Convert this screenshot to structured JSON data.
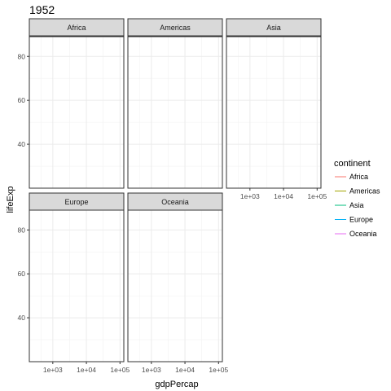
{
  "chart_data": {
    "type": "line",
    "title": "1952",
    "xlabel": "gdpPercap",
    "ylabel": "lifeExp",
    "x_scale": "log10",
    "x_ticks": [
      "1e+03",
      "1e+04",
      "1e+05"
    ],
    "x_tick_values": [
      1000,
      10000,
      100000
    ],
    "xlim": [
      200,
      130000
    ],
    "y_ticks": [
      "40",
      "60",
      "80"
    ],
    "y_tick_values": [
      40,
      60,
      80
    ],
    "ylim": [
      20,
      89
    ],
    "grid": true,
    "facets": [
      "Africa",
      "Americas",
      "Asia",
      "Europe",
      "Oceania"
    ],
    "legend": {
      "title": "continent",
      "placement": "right",
      "entries": [
        {
          "name": "Africa",
          "color": "#F8766D"
        },
        {
          "name": "Americas",
          "color": "#A3A500"
        },
        {
          "name": "Asia",
          "color": "#00BF7D"
        },
        {
          "name": "Europe",
          "color": "#00B0F6"
        },
        {
          "name": "Oceania",
          "color": "#E76BF3"
        }
      ]
    },
    "series": []
  }
}
